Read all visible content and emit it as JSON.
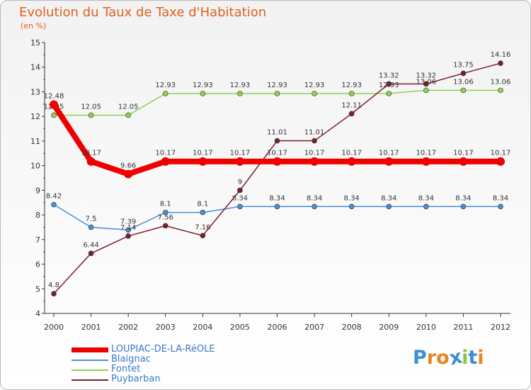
{
  "chart_data": {
    "type": "line",
    "title": "Evolution du Taux de Taxe d'Habitation",
    "subtitle": "(en %)",
    "categories": [
      "2000",
      "2001",
      "2002",
      "2003",
      "2004",
      "2005",
      "2006",
      "2007",
      "2008",
      "2009",
      "2010",
      "2011",
      "2012"
    ],
    "ylim": [
      4,
      15
    ],
    "yticks": [
      "4",
      "5",
      "6",
      "7",
      "8",
      "9",
      "10",
      "11",
      "12",
      "13",
      "14",
      "15"
    ],
    "series": [
      {
        "name": "Fontet",
        "color": "#8fd14f",
        "values": [
          12.05,
          12.05,
          12.05,
          12.93,
          12.93,
          12.93,
          12.93,
          12.93,
          12.93,
          12.93,
          13.06,
          13.06,
          13.06
        ],
        "labels": [
          "12.05",
          "12.05",
          "12.05",
          "12.93",
          "12.93",
          "12.93",
          "12.93",
          "12.93",
          "12.93",
          "12.93",
          "13.06",
          "13.06",
          "13.06"
        ]
      },
      {
        "name": "Blaignac",
        "color": "#4a8fd0",
        "values": [
          8.42,
          7.5,
          7.39,
          8.1,
          8.1,
          8.34,
          8.34,
          8.34,
          8.34,
          8.34,
          8.34,
          8.34,
          8.34
        ],
        "labels": [
          "8.42",
          "7.5",
          "7.39",
          "8.1",
          "8.1",
          "8.34",
          "8.34",
          "8.34",
          "8.34",
          "8.34",
          "8.34",
          "8.34",
          "8.34"
        ]
      },
      {
        "name": "Puybarban",
        "color": "#7a1f2b",
        "values": [
          4.8,
          6.44,
          7.14,
          7.56,
          7.16,
          9,
          11.01,
          11.01,
          12.11,
          13.32,
          13.32,
          13.75,
          14.16
        ],
        "labels": [
          "4.8",
          "6.44",
          "7.14",
          "7.56",
          "7.16",
          "9",
          "11.01",
          "11.01",
          "12.11",
          "13.32",
          "13.32",
          "13.75",
          "14.16"
        ]
      },
      {
        "name": "LOUPIAC-DE-LA-RéOLE",
        "color": "#ee0000",
        "values": [
          12.48,
          10.17,
          9.66,
          10.17,
          10.17,
          10.17,
          10.17,
          10.17,
          10.17,
          10.17,
          10.17,
          10.17,
          10.17
        ],
        "labels": [
          "12.48",
          "10.17",
          "9.66",
          "10.17",
          "10.17",
          "10.17",
          "10.17",
          "10.17",
          "10.17",
          "10.17",
          "10.17",
          "10.17",
          "10.17"
        ]
      }
    ],
    "legend": [
      "LOUPIAC-DE-LA-RéOLE",
      "Blaignac",
      "Fontet",
      "Puybarban"
    ],
    "grid": false
  },
  "logo": {
    "text": "Proxiti",
    "colors": [
      "#3a8fd6",
      "#e8871e",
      "#e8871e",
      "#3a8fd6",
      "#8cc63f",
      "#3a8fd6",
      "#e8871e"
    ]
  }
}
